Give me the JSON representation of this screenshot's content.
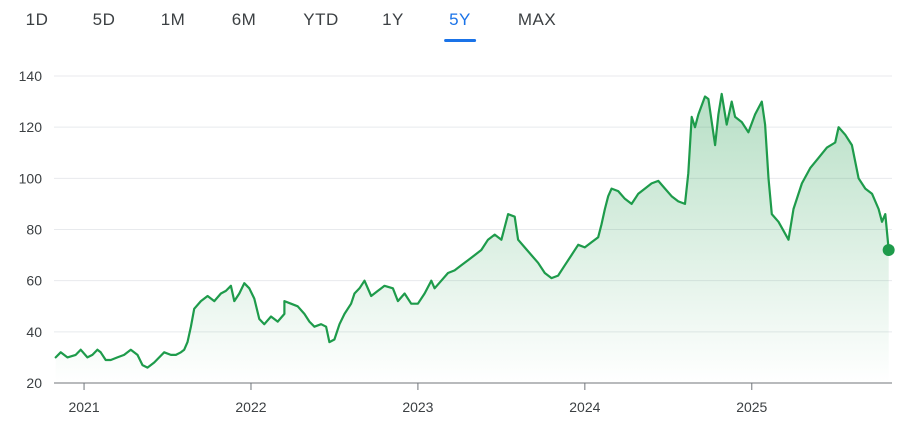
{
  "range_tabs": [
    {
      "label": "1D",
      "active": false
    },
    {
      "label": "5D",
      "active": false
    },
    {
      "label": "1M",
      "active": false
    },
    {
      "label": "6M",
      "active": false
    },
    {
      "label": "YTD",
      "active": false
    },
    {
      "label": "1Y",
      "active": false
    },
    {
      "label": "5Y",
      "active": true
    },
    {
      "label": "MAX",
      "active": false
    }
  ],
  "colors": {
    "line": "#1e9b4b",
    "fill": "#1e9b4b",
    "grid": "#e8eaed",
    "active_tab": "#1a73e8",
    "text": "#3c4043"
  },
  "chart_data": {
    "type": "area",
    "title": "",
    "xlabel": "",
    "ylabel": "",
    "ylim": [
      20,
      140
    ],
    "yticks": [
      20,
      40,
      60,
      80,
      100,
      120,
      140
    ],
    "xlim": [
      2020.82,
      2025.84
    ],
    "xticks": [
      {
        "label": "2021",
        "value": 2021
      },
      {
        "label": "2022",
        "value": 2022
      },
      {
        "label": "2023",
        "value": 2023
      },
      {
        "label": "2024",
        "value": 2024
      },
      {
        "label": "2025",
        "value": 2025
      }
    ],
    "grid": true,
    "legend": "none",
    "series": [
      {
        "points": [
          [
            2020.83,
            30
          ],
          [
            2020.86,
            32
          ],
          [
            2020.9,
            30
          ],
          [
            2020.95,
            31
          ],
          [
            2020.98,
            33
          ],
          [
            2021.02,
            30
          ],
          [
            2021.05,
            31
          ],
          [
            2021.08,
            33
          ],
          [
            2021.1,
            32
          ],
          [
            2021.13,
            29
          ],
          [
            2021.16,
            29
          ],
          [
            2021.2,
            30
          ],
          [
            2021.24,
            31
          ],
          [
            2021.28,
            33
          ],
          [
            2021.32,
            31
          ],
          [
            2021.35,
            27
          ],
          [
            2021.38,
            26
          ],
          [
            2021.42,
            28
          ],
          [
            2021.45,
            30
          ],
          [
            2021.48,
            32
          ],
          [
            2021.52,
            31
          ],
          [
            2021.55,
            31
          ],
          [
            2021.58,
            32
          ],
          [
            2021.6,
            33
          ],
          [
            2021.62,
            36
          ],
          [
            2021.64,
            42
          ],
          [
            2021.66,
            49
          ],
          [
            2021.7,
            52
          ],
          [
            2021.74,
            54
          ],
          [
            2021.78,
            52
          ],
          [
            2021.82,
            55
          ],
          [
            2021.85,
            56
          ],
          [
            2021.88,
            58
          ],
          [
            2021.9,
            52
          ],
          [
            2021.93,
            55
          ],
          [
            2021.96,
            59
          ],
          [
            2021.99,
            57
          ],
          [
            2022.02,
            53
          ],
          [
            2022.05,
            45
          ],
          [
            2022.08,
            43
          ],
          [
            2022.12,
            46
          ],
          [
            2022.16,
            44
          ],
          [
            2022.2,
            47
          ],
          [
            2022.2,
            52
          ],
          [
            2022.24,
            51
          ],
          [
            2022.28,
            50
          ],
          [
            2022.32,
            47
          ],
          [
            2022.35,
            44
          ],
          [
            2022.38,
            42
          ],
          [
            2022.42,
            43
          ],
          [
            2022.45,
            42
          ],
          [
            2022.47,
            36
          ],
          [
            2022.5,
            37
          ],
          [
            2022.53,
            43
          ],
          [
            2022.56,
            47
          ],
          [
            2022.6,
            51
          ],
          [
            2022.62,
            55
          ],
          [
            2022.65,
            57
          ],
          [
            2022.68,
            60
          ],
          [
            2022.72,
            54
          ],
          [
            2022.76,
            56
          ],
          [
            2022.8,
            58
          ],
          [
            2022.85,
            57
          ],
          [
            2022.88,
            52
          ],
          [
            2022.92,
            55
          ],
          [
            2022.96,
            51
          ],
          [
            2023.0,
            51
          ],
          [
            2023.04,
            55
          ],
          [
            2023.08,
            60
          ],
          [
            2023.1,
            57
          ],
          [
            2023.14,
            60
          ],
          [
            2023.18,
            63
          ],
          [
            2023.22,
            64
          ],
          [
            2023.26,
            66
          ],
          [
            2023.3,
            68
          ],
          [
            2023.34,
            70
          ],
          [
            2023.38,
            72
          ],
          [
            2023.42,
            76
          ],
          [
            2023.46,
            78
          ],
          [
            2023.5,
            76
          ],
          [
            2023.54,
            86
          ],
          [
            2023.58,
            85
          ],
          [
            2023.6,
            76
          ],
          [
            2023.64,
            73
          ],
          [
            2023.68,
            70
          ],
          [
            2023.72,
            67
          ],
          [
            2023.76,
            63
          ],
          [
            2023.8,
            61
          ],
          [
            2023.84,
            62
          ],
          [
            2023.88,
            66
          ],
          [
            2023.92,
            70
          ],
          [
            2023.96,
            74
          ],
          [
            2024.0,
            73
          ],
          [
            2024.04,
            75
          ],
          [
            2024.08,
            77
          ],
          [
            2024.1,
            82
          ],
          [
            2024.12,
            88
          ],
          [
            2024.14,
            93
          ],
          [
            2024.16,
            96
          ],
          [
            2024.2,
            95
          ],
          [
            2024.24,
            92
          ],
          [
            2024.28,
            90
          ],
          [
            2024.32,
            94
          ],
          [
            2024.36,
            96
          ],
          [
            2024.4,
            98
          ],
          [
            2024.44,
            99
          ],
          [
            2024.48,
            96
          ],
          [
            2024.52,
            93
          ],
          [
            2024.56,
            91
          ],
          [
            2024.6,
            90
          ],
          [
            2024.62,
            102
          ],
          [
            2024.64,
            124
          ],
          [
            2024.66,
            120
          ],
          [
            2024.68,
            125
          ],
          [
            2024.72,
            132
          ],
          [
            2024.74,
            131
          ],
          [
            2024.78,
            113
          ],
          [
            2024.8,
            125
          ],
          [
            2024.82,
            133
          ],
          [
            2024.85,
            121
          ],
          [
            2024.88,
            130
          ],
          [
            2024.9,
            124
          ],
          [
            2024.94,
            122
          ],
          [
            2024.98,
            118
          ],
          [
            2025.02,
            125
          ],
          [
            2025.06,
            130
          ],
          [
            2025.08,
            121
          ],
          [
            2025.1,
            100
          ],
          [
            2025.12,
            86
          ],
          [
            2025.16,
            83
          ],
          [
            2025.22,
            76
          ],
          [
            2025.25,
            88
          ],
          [
            2025.3,
            98
          ],
          [
            2025.35,
            104
          ],
          [
            2025.4,
            108
          ],
          [
            2025.45,
            112
          ],
          [
            2025.5,
            114
          ],
          [
            2025.52,
            120
          ],
          [
            2025.56,
            117
          ],
          [
            2025.6,
            113
          ],
          [
            2025.64,
            100
          ],
          [
            2025.68,
            96
          ],
          [
            2025.72,
            94
          ],
          [
            2025.76,
            88
          ],
          [
            2025.78,
            83
          ],
          [
            2025.8,
            86
          ],
          [
            2025.82,
            72
          ]
        ]
      }
    ]
  }
}
